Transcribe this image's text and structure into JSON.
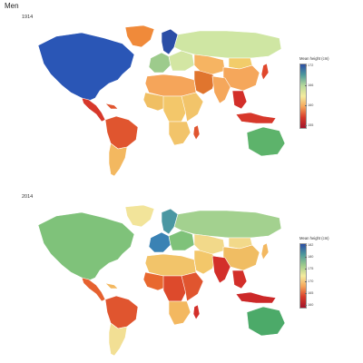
{
  "title": "Men",
  "panels": [
    {
      "year": "1914",
      "legend_title": "Mean height (cm)",
      "legend_ticks": [
        "172",
        "166",
        "160",
        "155"
      ],
      "legend_gradient": [
        "#2b4ea6",
        "#4f9a9b",
        "#b6d99a",
        "#f4ec9e",
        "#f5a55a",
        "#d73a2a",
        "#a2132a"
      ],
      "regions": {
        "north_america": "#2a56b6",
        "greenland": "#f08a3a",
        "central_america": "#d7382b",
        "south_america_north": "#e0552f",
        "south_america_south": "#f3b860",
        "caribbean": "#e0552f",
        "western_europe": "#9dcb8c",
        "scandinavia": "#2b4ea6",
        "eastern_europe": "#d3e6a3",
        "russia": "#cfe6a3",
        "north_africa": "#f5a55a",
        "west_africa": "#f0bf63",
        "central_africa": "#f3c76a",
        "east_africa": "#f2c46a",
        "south_africa": "#f2c46a",
        "middle_east": "#e0752e",
        "central_asia": "#f6b462",
        "south_asia": "#f5a75b",
        "china": "#f5a75b",
        "mongolia": "#f2cc6a",
        "southeast_asia": "#d32f2a",
        "japan": "#e0472c",
        "indonesia": "#d7382b",
        "australia": "#5db36b",
        "madagascar": "#e0552f"
      }
    },
    {
      "year": "2014",
      "legend_title": "Mean height (cm)",
      "legend_ticks": [
        "182",
        "180",
        "175",
        "170",
        "165",
        "160"
      ],
      "legend_gradient": [
        "#2b4ea6",
        "#4f9a9b",
        "#9dcb8c",
        "#f4ec9e",
        "#f5a55a",
        "#d73a2a",
        "#a2132a"
      ],
      "regions": {
        "north_america": "#7fc27a",
        "greenland": "#f2e49a",
        "central_america": "#e6612f",
        "south_america_north": "#e0552f",
        "south_america_south": "#f2df94",
        "caribbean": "#f3b860",
        "western_europe": "#3a82b4",
        "scandinavia": "#4a97a2",
        "eastern_europe": "#7fc27a",
        "russia": "#a3d18f",
        "north_africa": "#f2c46a",
        "west_africa": "#e8682f",
        "central_africa": "#dd4a2c",
        "east_africa": "#e0552f",
        "south_africa": "#f3b860",
        "middle_east": "#f3c76a",
        "central_asia": "#f2d98a",
        "south_asia": "#d32f2a",
        "china": "#f0bd63",
        "mongolia": "#f2d98a",
        "southeast_asia": "#d32f2a",
        "japan": "#f3b860",
        "indonesia": "#cc2828",
        "australia": "#4caa69",
        "madagascar": "#d32f2a"
      }
    }
  ]
}
